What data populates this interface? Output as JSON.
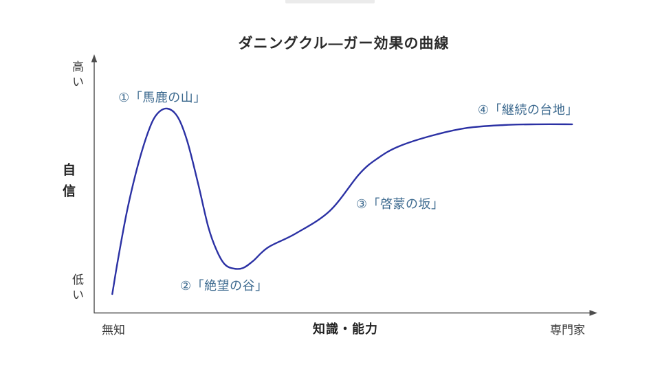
{
  "chart_data": {
    "type": "line",
    "title": "ダニングクル—ガー効果の曲線",
    "xlabel": "知識・能力",
    "ylabel": "自信",
    "x_axis_min_label": "無知",
    "x_axis_max_label": "専門家",
    "y_axis_min_label": "低い",
    "y_axis_max_label": "高い",
    "grid": false,
    "legend": false,
    "background_color": "#ffffff",
    "axis_color": "#4d4d4d",
    "annotation_color": "#3d6a8f",
    "xlim": [
      0,
      1
    ],
    "ylim": [
      0,
      1
    ],
    "series": [
      {
        "name": "confidence-curve",
        "color": "#2b31a4",
        "points": [
          [
            0.036,
            0.072
          ],
          [
            0.048,
            0.213
          ],
          [
            0.066,
            0.4
          ],
          [
            0.086,
            0.565
          ],
          [
            0.107,
            0.699
          ],
          [
            0.124,
            0.768
          ],
          [
            0.145,
            0.792
          ],
          [
            0.166,
            0.76
          ],
          [
            0.185,
            0.667
          ],
          [
            0.207,
            0.499
          ],
          [
            0.227,
            0.333
          ],
          [
            0.244,
            0.24
          ],
          [
            0.26,
            0.187
          ],
          [
            0.278,
            0.171
          ],
          [
            0.296,
            0.173
          ],
          [
            0.316,
            0.2
          ],
          [
            0.346,
            0.253
          ],
          [
            0.401,
            0.307
          ],
          [
            0.469,
            0.395
          ],
          [
            0.528,
            0.539
          ],
          [
            0.565,
            0.6
          ],
          [
            0.606,
            0.645
          ],
          [
            0.674,
            0.688
          ],
          [
            0.743,
            0.717
          ],
          [
            0.815,
            0.728
          ],
          [
            0.88,
            0.731
          ],
          [
            0.951,
            0.731
          ]
        ]
      }
    ],
    "annotations": [
      {
        "label": "①「馬鹿の山」",
        "x": 0.048,
        "y": 0.843
      },
      {
        "label": "②「絶望の谷」",
        "x": 0.171,
        "y": 0.112
      },
      {
        "label": "③「啓蒙の坂」",
        "x": 0.521,
        "y": 0.429
      },
      {
        "label": "④「継続の台地」",
        "x": 0.763,
        "y": 0.795
      }
    ]
  }
}
